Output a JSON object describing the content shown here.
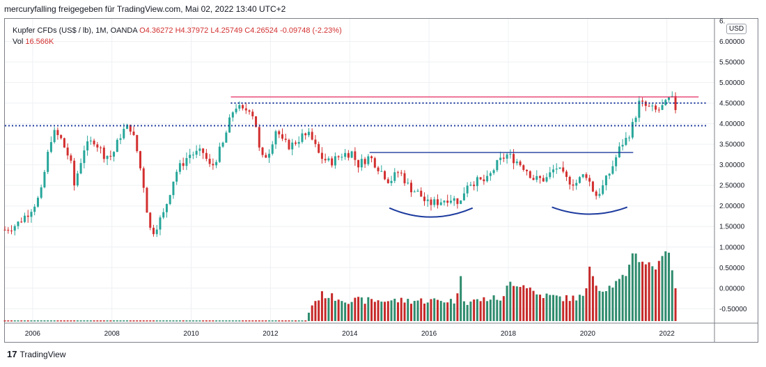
{
  "header": "mercuryfalling freigegeben für TradingView.com, Mai 02, 2022 13:40 UTC+2",
  "legend": {
    "symbol": "Kupfer CFDs (US$ / lb), 1M, OANDA",
    "open": "O4.36272",
    "high": "H4.37972",
    "low": "L4.25749",
    "close": "C4.26524",
    "change": "-0.09748 (-2.23%)",
    "vol_label": "Vol",
    "vol_value": "16.566K"
  },
  "currency": "USD",
  "footer": {
    "logo_mark": "17",
    "brand": "TradingView"
  },
  "colors": {
    "up": "#26a69a",
    "down": "#d32f2f",
    "annot_blue": "#1d3b9e",
    "resistance": "#e63b6d",
    "volume_up": "#2e8b6d",
    "volume_down": "#c62828"
  },
  "chart_data": {
    "type": "candlestick",
    "title": "Kupfer CFDs (US$ / lb), 1M, OANDA",
    "x_ticks": [
      "2006",
      "2008",
      "2010",
      "2012",
      "2014",
      "2016",
      "2018",
      "2020",
      "2022"
    ],
    "y_ticks": [
      "6.00000",
      "5.50000",
      "5.00000",
      "4.50000",
      "4.00000",
      "3.50000",
      "3.00000",
      "2.50000",
      "2.00000",
      "1.50000",
      "1.00000",
      "0.50000",
      "0.00000",
      "-0.50000"
    ],
    "y_axis_top_label": "6.",
    "ylim": [
      -0.85,
      6.55
    ],
    "xlim": [
      2005.3,
      2023.2
    ],
    "series_anchors": [
      [
        2005.3,
        1.42
      ],
      [
        2005.6,
        1.55
      ],
      [
        2005.9,
        1.85
      ],
      [
        2006.2,
        2.25
      ],
      [
        2006.35,
        3.1
      ],
      [
        2006.5,
        3.8
      ],
      [
        2006.7,
        3.65
      ],
      [
        2006.95,
        3.1
      ],
      [
        2007.05,
        2.5
      ],
      [
        2007.3,
        3.4
      ],
      [
        2007.55,
        3.6
      ],
      [
        2007.8,
        3.25
      ],
      [
        2008.0,
        3.2
      ],
      [
        2008.25,
        3.8
      ],
      [
        2008.45,
        3.95
      ],
      [
        2008.6,
        3.5
      ],
      [
        2008.8,
        2.5
      ],
      [
        2008.95,
        1.45
      ],
      [
        2009.05,
        1.4
      ],
      [
        2009.3,
        1.8
      ],
      [
        2009.6,
        2.8
      ],
      [
        2009.95,
        3.25
      ],
      [
        2010.3,
        3.3
      ],
      [
        2010.5,
        2.9
      ],
      [
        2010.8,
        3.5
      ],
      [
        2010.95,
        4.0
      ],
      [
        2011.1,
        4.45
      ],
      [
        2011.3,
        4.3
      ],
      [
        2011.5,
        4.4
      ],
      [
        2011.65,
        3.9
      ],
      [
        2011.75,
        3.1
      ],
      [
        2011.95,
        3.3
      ],
      [
        2012.15,
        3.9
      ],
      [
        2012.3,
        3.55
      ],
      [
        2012.5,
        3.45
      ],
      [
        2012.8,
        3.7
      ],
      [
        2013.0,
        3.7
      ],
      [
        2013.25,
        3.2
      ],
      [
        2013.5,
        3.05
      ],
      [
        2013.8,
        3.25
      ],
      [
        2014.05,
        3.3
      ],
      [
        2014.2,
        3.0
      ],
      [
        2014.5,
        3.2
      ],
      [
        2014.75,
        2.9
      ],
      [
        2015.0,
        2.6
      ],
      [
        2015.25,
        2.85
      ],
      [
        2015.5,
        2.45
      ],
      [
        2015.75,
        2.3
      ],
      [
        2015.95,
        2.05
      ],
      [
        2016.25,
        2.1
      ],
      [
        2016.5,
        2.2
      ],
      [
        2016.8,
        2.1
      ],
      [
        2016.95,
        2.55
      ],
      [
        2017.2,
        2.6
      ],
      [
        2017.45,
        2.6
      ],
      [
        2017.7,
        3.0
      ],
      [
        2017.95,
        3.25
      ],
      [
        2018.2,
        3.1
      ],
      [
        2018.45,
        2.9
      ],
      [
        2018.65,
        2.65
      ],
      [
        2018.95,
        2.65
      ],
      [
        2019.2,
        2.95
      ],
      [
        2019.45,
        2.65
      ],
      [
        2019.7,
        2.55
      ],
      [
        2019.95,
        2.8
      ],
      [
        2020.2,
        2.25
      ],
      [
        2020.35,
        2.4
      ],
      [
        2020.6,
        2.9
      ],
      [
        2020.85,
        3.5
      ],
      [
        2021.0,
        3.65
      ],
      [
        2021.15,
        4.0
      ],
      [
        2021.3,
        4.5
      ],
      [
        2021.5,
        4.4
      ],
      [
        2021.75,
        4.3
      ],
      [
        2021.95,
        4.45
      ],
      [
        2022.1,
        4.65
      ],
      [
        2022.25,
        4.3
      ]
    ],
    "volume_anchors": [
      [
        2005.3,
        -0.8
      ],
      [
        2012.9,
        -0.8
      ],
      [
        2013.0,
        -0.45
      ],
      [
        2013.3,
        -0.15
      ],
      [
        2013.5,
        -0.2
      ],
      [
        2014.0,
        -0.3
      ],
      [
        2015.0,
        -0.3
      ],
      [
        2016.0,
        -0.3
      ],
      [
        2016.7,
        -0.3
      ],
      [
        2016.8,
        0.35
      ],
      [
        2016.9,
        -0.35
      ],
      [
        2017.5,
        -0.25
      ],
      [
        2017.9,
        -0.25
      ],
      [
        2018.0,
        0.15
      ],
      [
        2018.5,
        0.05
      ],
      [
        2018.7,
        -0.15
      ],
      [
        2019.5,
        -0.25
      ],
      [
        2019.95,
        -0.2
      ],
      [
        2020.05,
        0.55
      ],
      [
        2020.3,
        -0.05
      ],
      [
        2020.6,
        0.05
      ],
      [
        2020.9,
        0.25
      ],
      [
        2021.0,
        0.25
      ],
      [
        2021.1,
        0.95
      ],
      [
        2021.3,
        0.7
      ],
      [
        2021.5,
        0.6
      ],
      [
        2021.75,
        0.5
      ],
      [
        2021.9,
        0.75
      ],
      [
        2022.0,
        1.1
      ],
      [
        2022.1,
        0.7
      ],
      [
        2022.2,
        0.0
      ]
    ],
    "annotations": [
      {
        "type": "hline",
        "color": "#e63b6d",
        "style": "solid",
        "y": 4.65,
        "x": [
          2011.0,
          2022.8
        ]
      },
      {
        "type": "hline",
        "color": "#1d3b9e",
        "style": "dotted",
        "y": 4.5,
        "x": [
          2011.0,
          2023.0
        ]
      },
      {
        "type": "hline",
        "color": "#1d3b9e",
        "style": "dotted",
        "y": 3.95,
        "x": [
          2005.3,
          2023.0
        ]
      },
      {
        "type": "hline",
        "color": "#1d3b9e",
        "style": "solid",
        "y": 3.3,
        "x": [
          2014.5,
          2021.15
        ]
      },
      {
        "type": "arc",
        "color": "#1d3b9e",
        "x": [
          2015.0,
          2017.1
        ],
        "y_ends": 1.95,
        "y_bottom": 1.73
      },
      {
        "type": "arc",
        "color": "#1d3b9e",
        "x": [
          2019.1,
          2021.0
        ],
        "y_ends": 1.97,
        "y_bottom": 1.8
      }
    ],
    "legend": "top-left",
    "grid": true
  }
}
